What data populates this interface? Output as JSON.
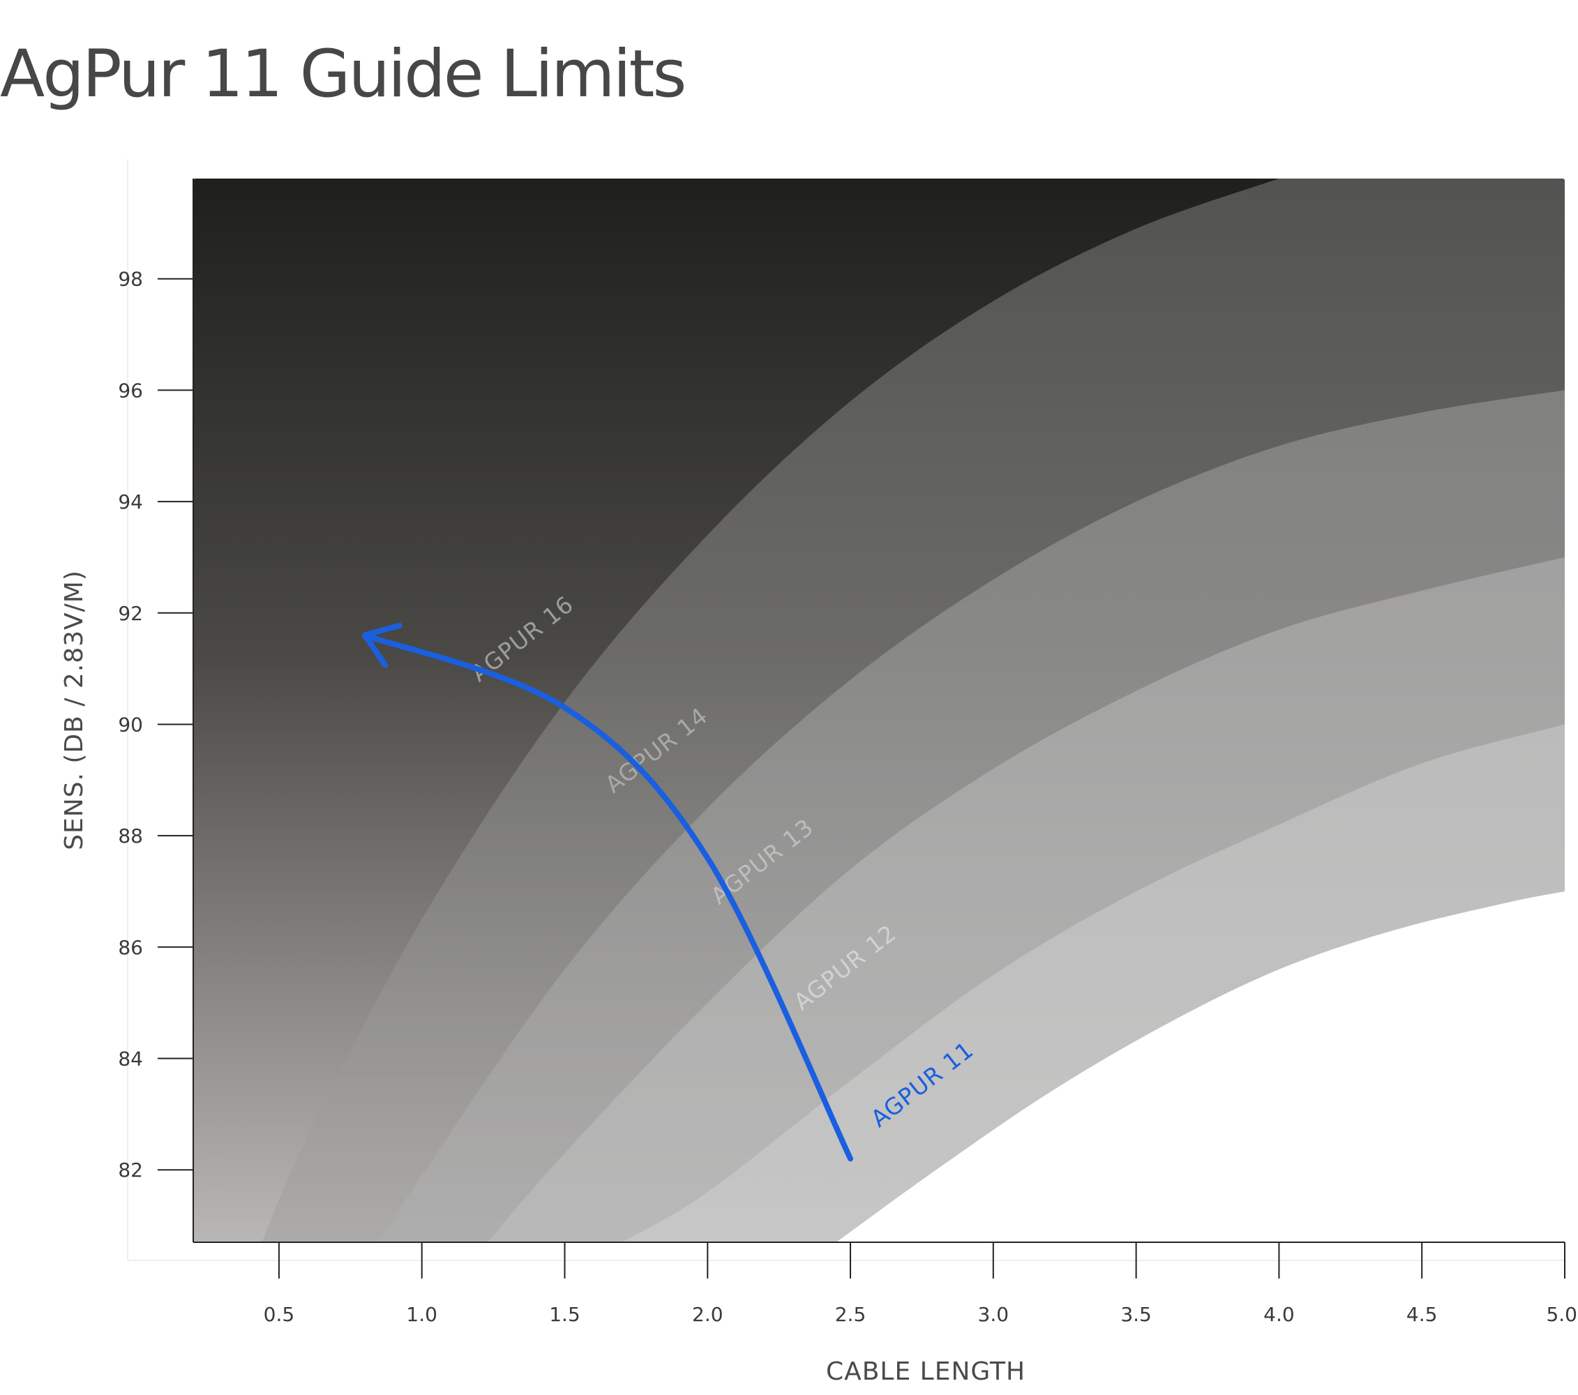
{
  "chart_data": {
    "type": "area",
    "title": "AgPur 11 Guide Limits",
    "xlabel": "CABLE LENGTH",
    "ylabel": "SENS. (DB / 2.83V/M)",
    "xlim": [
      0.2,
      5.0
    ],
    "ylim": [
      80.7,
      99.8
    ],
    "xticks": [
      "0.5",
      "1.0",
      "1.5",
      "2.0",
      "2.5",
      "3.0",
      "3.5",
      "4.0",
      "4.5",
      "5.0"
    ],
    "yticks": [
      "82",
      "84",
      "86",
      "88",
      "90",
      "92",
      "94",
      "96",
      "98"
    ],
    "grid": false,
    "series": [
      {
        "name": "AGPUR 11",
        "color": "#ffffff",
        "label_color": "#1a5fe0",
        "highlighted": true,
        "x": [
          2.45,
          2.8,
          3.2,
          3.6,
          4.0,
          4.4,
          4.8,
          5.0
        ],
        "y": [
          80.7,
          82.0,
          83.4,
          84.6,
          85.6,
          86.3,
          86.8,
          87.0
        ]
      },
      {
        "name": "AGPUR 12",
        "color": "#dadada",
        "label_color": "#d2d2d2",
        "x": [
          1.7,
          2.0,
          2.5,
          3.0,
          3.5,
          4.0,
          4.5,
          5.0
        ],
        "y": [
          80.7,
          81.6,
          83.6,
          85.5,
          87.0,
          88.2,
          89.3,
          90.0
        ]
      },
      {
        "name": "AGPUR 13",
        "color": "#c9c9c9",
        "label_color": "#bdbdbd",
        "x": [
          1.23,
          1.5,
          2.0,
          2.5,
          3.0,
          3.5,
          4.0,
          4.5,
          5.0
        ],
        "y": [
          80.7,
          82.3,
          85.0,
          87.4,
          89.2,
          90.6,
          91.7,
          92.4,
          93.0
        ]
      },
      {
        "name": "AGPUR 14",
        "color": "#b3b3b3",
        "label_color": "#a9a9a9",
        "x": [
          0.85,
          1.0,
          1.5,
          2.0,
          2.5,
          3.0,
          3.5,
          4.0,
          4.5,
          5.0
        ],
        "y": [
          80.7,
          81.9,
          85.6,
          88.5,
          90.8,
          92.6,
          94.0,
          95.0,
          95.6,
          96.0
        ]
      },
      {
        "name": "AGPUR 16",
        "color": "#9a9a9a",
        "label_color": "#9d9d9d",
        "x": [
          0.44,
          0.6,
          1.0,
          1.5,
          2.0,
          2.5,
          3.0,
          3.5,
          4.0
        ],
        "y": [
          80.7,
          82.6,
          86.5,
          90.4,
          93.4,
          95.8,
          97.6,
          98.9,
          99.8
        ]
      }
    ],
    "annotation": {
      "type": "arrow",
      "color": "#1a5fe0",
      "points": [
        [
          2.5,
          82.2
        ],
        [
          2.0,
          87.6
        ],
        [
          1.5,
          90.3
        ],
        [
          0.8,
          91.6
        ]
      ]
    }
  }
}
